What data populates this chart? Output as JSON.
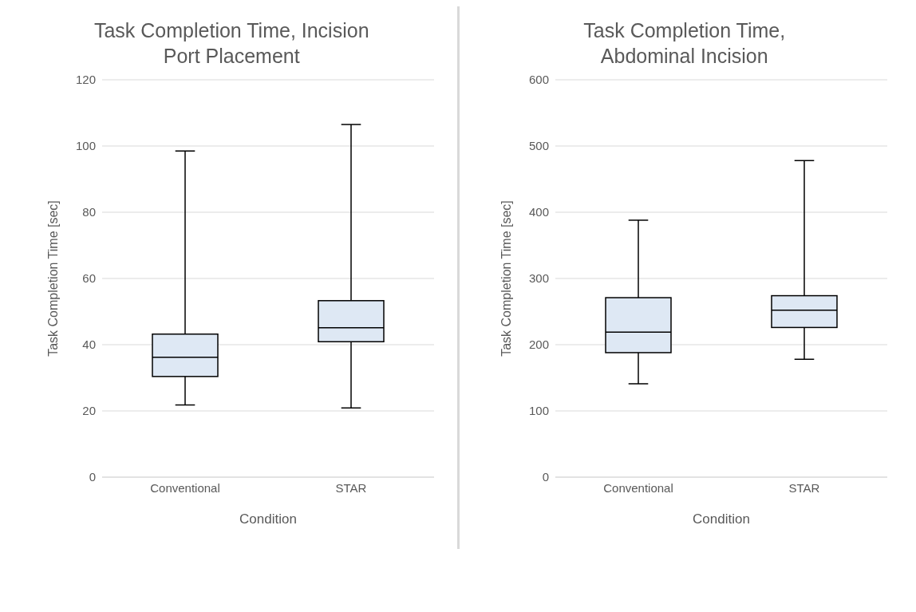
{
  "chart_data": [
    {
      "type": "box",
      "title": "Task Completion Time, Incision Port Placement",
      "xlabel": "Condition",
      "ylabel": "Task Completion Time [sec]",
      "categories": [
        "Conventional",
        "STAR"
      ],
      "color": "#dee8f4",
      "ylim": [
        0,
        120
      ],
      "yticks": [
        0,
        20,
        40,
        60,
        80,
        100,
        120
      ],
      "grid": "y",
      "boxes": [
        {
          "low": 21.8,
          "q1": 30.4,
          "median": 36.2,
          "q3": 43.2,
          "high": 98.5
        },
        {
          "low": 20.9,
          "q1": 40.9,
          "median": 45.1,
          "q3": 53.3,
          "high": 106.5
        }
      ]
    },
    {
      "type": "box",
      "title": "Task Completion Time, Abdominal Incision",
      "xlabel": "Condition",
      "ylabel": "Task Completion Time [sec]",
      "categories": [
        "Conventional",
        "STAR"
      ],
      "color": "#dee8f4",
      "ylim": [
        0,
        600
      ],
      "yticks": [
        0,
        100,
        200,
        300,
        400,
        500,
        600
      ],
      "grid": "y",
      "boxes": [
        {
          "low": 141,
          "q1": 188,
          "median": 219,
          "q3": 271,
          "high": 388
        },
        {
          "low": 178,
          "q1": 226,
          "median": 252,
          "q3": 274,
          "high": 478
        }
      ]
    }
  ]
}
